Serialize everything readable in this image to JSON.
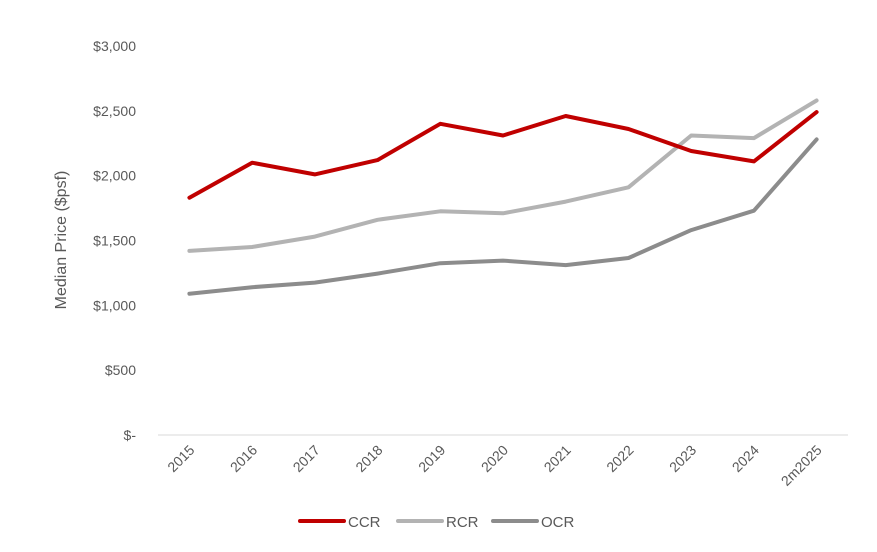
{
  "chart_data": {
    "type": "line",
    "title": "",
    "xlabel": "",
    "ylabel": "Median Price ($psf)",
    "categories": [
      "2015",
      "2016",
      "2017",
      "2018",
      "2019",
      "2020",
      "2021",
      "2022",
      "2023",
      "2024",
      "2m2025"
    ],
    "y_ticks": [
      "$-",
      "$500",
      "$1,000",
      "$1,500",
      "$2,000",
      "$2,500",
      "$3,000"
    ],
    "ylim": [
      0,
      3000
    ],
    "grid": false,
    "legend_position": "bottom",
    "series": [
      {
        "name": "CCR",
        "color": "#C00000",
        "values": [
          1830,
          2100,
          2010,
          2120,
          2400,
          2310,
          2460,
          2360,
          2190,
          2110,
          2490
        ]
      },
      {
        "name": "RCR",
        "color": "#B3B3B3",
        "values": [
          1420,
          1450,
          1530,
          1660,
          1725,
          1710,
          1800,
          1910,
          2310,
          2290,
          2580
        ]
      },
      {
        "name": "OCR",
        "color": "#8C8C8C",
        "values": [
          1090,
          1140,
          1175,
          1245,
          1325,
          1345,
          1310,
          1365,
          1580,
          1730,
          2280
        ]
      }
    ]
  }
}
